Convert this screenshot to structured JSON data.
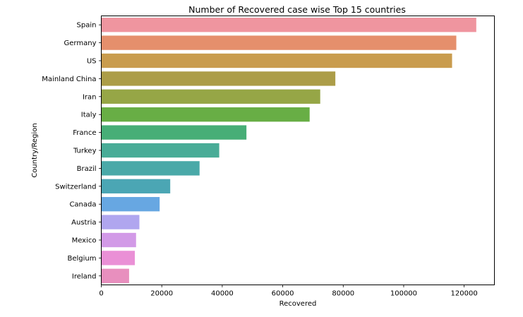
{
  "chart_data": {
    "type": "bar",
    "orientation": "horizontal",
    "title": "Number of Recovered case wise Top 15 countries",
    "xlabel": "Recovered",
    "ylabel": "Country/Region",
    "xlim": [
      0,
      130000
    ],
    "xticks": [
      0,
      20000,
      40000,
      60000,
      80000,
      100000,
      120000
    ],
    "grid": false,
    "categories": [
      "Spain",
      "Germany",
      "US",
      "Mainland China",
      "Iran",
      "Italy",
      "France",
      "Turkey",
      "Brazil",
      "Switzerland",
      "Canada",
      "Austria",
      "Mexico",
      "Belgium",
      "Ireland"
    ],
    "values": [
      124000,
      117400,
      116000,
      77400,
      72400,
      68900,
      48000,
      39000,
      32500,
      22800,
      19300,
      12600,
      11500,
      11100,
      9200
    ],
    "colors": [
      "#ef959f",
      "#e58f6c",
      "#c99c4e",
      "#ac9d48",
      "#96a646",
      "#68ae45",
      "#47ae77",
      "#49ac97",
      "#4aa9a8",
      "#4ba6b4",
      "#67a7e2",
      "#b0a6ef",
      "#d29ae7",
      "#ea90d6",
      "#e88fbe"
    ]
  }
}
